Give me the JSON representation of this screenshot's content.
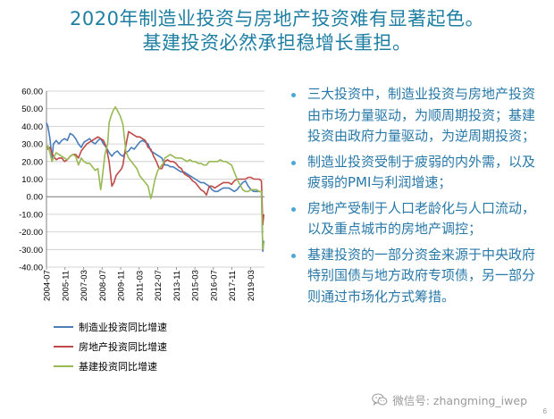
{
  "title": {
    "line1": "2020年制造业投资与房地产投资难有显著起色。",
    "line2": "基建投资必然承担稳增长重担。"
  },
  "bullets": [
    "三大投资中，制造业投资与房地产投资由市场力量驱动，为顺周期投资；基建投资由政府力量驱动，为逆周期投资；",
    "制造业投资受制于疲弱的内外需，以及疲弱的PMI与利润增速；",
    "房地产受制于人口老龄化与人口流动，以及重点城市的房地产调控；",
    "基建投资的一部分资金来源于中央政府特别国债与地方政府专项债，另一部分则通过市场化方式筹措。"
  ],
  "footer": {
    "icon": "wechat-icon",
    "text": "微信号: zhangming_iwep"
  },
  "page_number": "6",
  "chart_data": {
    "type": "line",
    "ylim": [
      -40,
      60
    ],
    "xlim": [
      2004.5,
      2020.17
    ],
    "y_ticks": [
      "60.00",
      "50.00",
      "40.00",
      "30.00",
      "20.00",
      "10.00",
      "0.00",
      "-10.00",
      "-20.00",
      "-30.00",
      "-40.00"
    ],
    "x_ticks": [
      "2004-07",
      "2005-11",
      "2007-03",
      "2008-07",
      "2009-11",
      "2011-03",
      "2012-07",
      "2013-11",
      "2015-03",
      "2016-07",
      "2017-11",
      "2019-03"
    ],
    "grid": true,
    "legend_position": "bottom",
    "series": [
      {
        "name": "制造业投资同比增速",
        "color": "#4a7ebb",
        "points": [
          [
            2004.5,
            42
          ],
          [
            2004.6,
            40
          ],
          [
            2004.75,
            33
          ],
          [
            2004.9,
            22
          ],
          [
            2005.0,
            30
          ],
          [
            2005.2,
            32
          ],
          [
            2005.4,
            30
          ],
          [
            2005.6,
            32
          ],
          [
            2005.8,
            33
          ],
          [
            2006.0,
            32
          ],
          [
            2006.2,
            36
          ],
          [
            2006.4,
            35
          ],
          [
            2006.6,
            33
          ],
          [
            2006.8,
            30
          ],
          [
            2007.0,
            28
          ],
          [
            2007.2,
            31
          ],
          [
            2007.4,
            32
          ],
          [
            2007.6,
            33
          ],
          [
            2007.8,
            31
          ],
          [
            2008.0,
            30
          ],
          [
            2008.2,
            32
          ],
          [
            2008.4,
            33
          ],
          [
            2008.6,
            30
          ],
          [
            2008.8,
            28
          ],
          [
            2009.0,
            25
          ],
          [
            2009.2,
            23
          ],
          [
            2009.4,
            25
          ],
          [
            2009.6,
            26
          ],
          [
            2009.8,
            24
          ],
          [
            2010.0,
            23
          ],
          [
            2010.2,
            25
          ],
          [
            2010.4,
            26
          ],
          [
            2010.6,
            28
          ],
          [
            2010.8,
            27
          ],
          [
            2011.0,
            29
          ],
          [
            2011.2,
            31
          ],
          [
            2011.4,
            32
          ],
          [
            2011.6,
            31
          ],
          [
            2011.8,
            30
          ],
          [
            2012.0,
            26
          ],
          [
            2012.2,
            25
          ],
          [
            2012.4,
            24
          ],
          [
            2012.6,
            23
          ],
          [
            2012.8,
            22
          ],
          [
            2013.0,
            18
          ],
          [
            2013.2,
            18
          ],
          [
            2013.4,
            17
          ],
          [
            2013.6,
            17
          ],
          [
            2013.8,
            16
          ],
          [
            2014.0,
            15
          ],
          [
            2014.2,
            14
          ],
          [
            2014.4,
            14
          ],
          [
            2014.6,
            13
          ],
          [
            2014.8,
            12
          ],
          [
            2015.0,
            11
          ],
          [
            2015.2,
            10
          ],
          [
            2015.4,
            9
          ],
          [
            2015.6,
            8
          ],
          [
            2015.8,
            8
          ],
          [
            2016.0,
            7
          ],
          [
            2016.2,
            6
          ],
          [
            2016.4,
            4
          ],
          [
            2016.6,
            3
          ],
          [
            2016.8,
            3
          ],
          [
            2017.0,
            4
          ],
          [
            2017.2,
            5
          ],
          [
            2017.4,
            5
          ],
          [
            2017.6,
            5
          ],
          [
            2017.8,
            4
          ],
          [
            2018.0,
            3
          ],
          [
            2018.2,
            4
          ],
          [
            2018.4,
            6
          ],
          [
            2018.6,
            8
          ],
          [
            2018.8,
            9
          ],
          [
            2019.0,
            6
          ],
          [
            2019.2,
            4
          ],
          [
            2019.4,
            3
          ],
          [
            2019.6,
            3
          ],
          [
            2019.8,
            3
          ],
          [
            2019.95,
            3
          ],
          [
            2020.05,
            -31
          ],
          [
            2020.12,
            -25
          ]
        ]
      },
      {
        "name": "房地产投资同比增速",
        "color": "#be4b48",
        "points": [
          [
            2004.5,
            28
          ],
          [
            2004.6,
            27
          ],
          [
            2004.75,
            28
          ],
          [
            2004.9,
            25
          ],
          [
            2005.0,
            23
          ],
          [
            2005.2,
            21
          ],
          [
            2005.4,
            22
          ],
          [
            2005.6,
            22
          ],
          [
            2005.8,
            20
          ],
          [
            2006.0,
            21
          ],
          [
            2006.2,
            23
          ],
          [
            2006.4,
            24
          ],
          [
            2006.6,
            24
          ],
          [
            2006.8,
            22
          ],
          [
            2007.0,
            26
          ],
          [
            2007.2,
            28
          ],
          [
            2007.4,
            30
          ],
          [
            2007.6,
            31
          ],
          [
            2007.8,
            32
          ],
          [
            2008.0,
            33
          ],
          [
            2008.2,
            34
          ],
          [
            2008.4,
            33
          ],
          [
            2008.6,
            32
          ],
          [
            2008.8,
            28
          ],
          [
            2009.0,
            20
          ],
          [
            2009.2,
            6
          ],
          [
            2009.35,
            8
          ],
          [
            2009.5,
            12
          ],
          [
            2009.7,
            14
          ],
          [
            2009.9,
            16
          ],
          [
            2010.0,
            18
          ],
          [
            2010.2,
            29
          ],
          [
            2010.4,
            37
          ],
          [
            2010.6,
            36
          ],
          [
            2010.8,
            35
          ],
          [
            2011.0,
            34
          ],
          [
            2011.2,
            34
          ],
          [
            2011.4,
            33
          ],
          [
            2011.6,
            32
          ],
          [
            2011.8,
            28
          ],
          [
            2012.0,
            27
          ],
          [
            2012.2,
            23
          ],
          [
            2012.4,
            20
          ],
          [
            2012.6,
            16
          ],
          [
            2012.8,
            16
          ],
          [
            2013.0,
            20
          ],
          [
            2013.2,
            21
          ],
          [
            2013.4,
            20
          ],
          [
            2013.6,
            20
          ],
          [
            2013.8,
            19
          ],
          [
            2014.0,
            17
          ],
          [
            2014.2,
            16
          ],
          [
            2014.4,
            13
          ],
          [
            2014.6,
            12
          ],
          [
            2014.8,
            11
          ],
          [
            2015.0,
            9
          ],
          [
            2015.2,
            8
          ],
          [
            2015.4,
            6
          ],
          [
            2015.6,
            4
          ],
          [
            2015.8,
            3
          ],
          [
            2016.0,
            1
          ],
          [
            2016.2,
            6
          ],
          [
            2016.4,
            6
          ],
          [
            2016.6,
            5
          ],
          [
            2016.8,
            6
          ],
          [
            2017.0,
            7
          ],
          [
            2017.2,
            8
          ],
          [
            2017.4,
            8
          ],
          [
            2017.6,
            8
          ],
          [
            2017.8,
            7
          ],
          [
            2018.0,
            9
          ],
          [
            2018.2,
            10
          ],
          [
            2018.4,
            10
          ],
          [
            2018.6,
            10
          ],
          [
            2018.8,
            10
          ],
          [
            2019.0,
            11
          ],
          [
            2019.2,
            11
          ],
          [
            2019.4,
            10
          ],
          [
            2019.6,
            10
          ],
          [
            2019.8,
            10
          ],
          [
            2019.95,
            9
          ],
          [
            2020.05,
            -16
          ],
          [
            2020.12,
            -10
          ]
        ]
      },
      {
        "name": "基建投资同比增速",
        "color": "#98b954",
        "points": [
          [
            2004.5,
            27
          ],
          [
            2004.6,
            29
          ],
          [
            2004.75,
            25
          ],
          [
            2004.9,
            20
          ],
          [
            2005.0,
            22
          ],
          [
            2005.2,
            25
          ],
          [
            2005.4,
            24
          ],
          [
            2005.6,
            23
          ],
          [
            2005.8,
            22
          ],
          [
            2006.0,
            21
          ],
          [
            2006.2,
            23
          ],
          [
            2006.4,
            24
          ],
          [
            2006.6,
            23
          ],
          [
            2006.8,
            18
          ],
          [
            2007.0,
            22
          ],
          [
            2007.2,
            20
          ],
          [
            2007.4,
            19
          ],
          [
            2007.6,
            19
          ],
          [
            2007.8,
            17
          ],
          [
            2008.0,
            15
          ],
          [
            2008.2,
            16
          ],
          [
            2008.4,
            4
          ],
          [
            2008.5,
            10
          ],
          [
            2008.7,
            24
          ],
          [
            2008.9,
            30
          ],
          [
            2009.0,
            42
          ],
          [
            2009.15,
            46
          ],
          [
            2009.3,
            49
          ],
          [
            2009.45,
            51
          ],
          [
            2009.6,
            49
          ],
          [
            2009.8,
            46
          ],
          [
            2010.0,
            41
          ],
          [
            2010.2,
            26
          ],
          [
            2010.4,
            22
          ],
          [
            2010.6,
            20
          ],
          [
            2010.8,
            18
          ],
          [
            2011.0,
            16
          ],
          [
            2011.2,
            12
          ],
          [
            2011.4,
            10
          ],
          [
            2011.6,
            8
          ],
          [
            2011.8,
            6
          ],
          [
            2012.0,
            -1
          ],
          [
            2012.1,
            2
          ],
          [
            2012.3,
            10
          ],
          [
            2012.5,
            15
          ],
          [
            2012.7,
            17
          ],
          [
            2012.9,
            19
          ],
          [
            2013.0,
            22
          ],
          [
            2013.2,
            23
          ],
          [
            2013.4,
            24
          ],
          [
            2013.6,
            23
          ],
          [
            2013.8,
            22
          ],
          [
            2014.0,
            22
          ],
          [
            2014.2,
            22
          ],
          [
            2014.4,
            21
          ],
          [
            2014.6,
            20
          ],
          [
            2014.8,
            21
          ],
          [
            2015.0,
            20
          ],
          [
            2015.2,
            20
          ],
          [
            2015.4,
            19
          ],
          [
            2015.6,
            19
          ],
          [
            2015.8,
            18
          ],
          [
            2016.0,
            18
          ],
          [
            2016.2,
            20
          ],
          [
            2016.4,
            20
          ],
          [
            2016.6,
            20
          ],
          [
            2016.8,
            20
          ],
          [
            2017.0,
            21
          ],
          [
            2017.2,
            20
          ],
          [
            2017.4,
            20
          ],
          [
            2017.6,
            19
          ],
          [
            2017.8,
            18
          ],
          [
            2018.0,
            14
          ],
          [
            2018.2,
            10
          ],
          [
            2018.4,
            7
          ],
          [
            2018.6,
            4
          ],
          [
            2018.8,
            3
          ],
          [
            2019.0,
            3
          ],
          [
            2019.2,
            4
          ],
          [
            2019.4,
            4
          ],
          [
            2019.6,
            4
          ],
          [
            2019.8,
            3
          ],
          [
            2019.95,
            3
          ],
          [
            2020.05,
            -30
          ],
          [
            2020.12,
            -26
          ]
        ]
      }
    ]
  }
}
